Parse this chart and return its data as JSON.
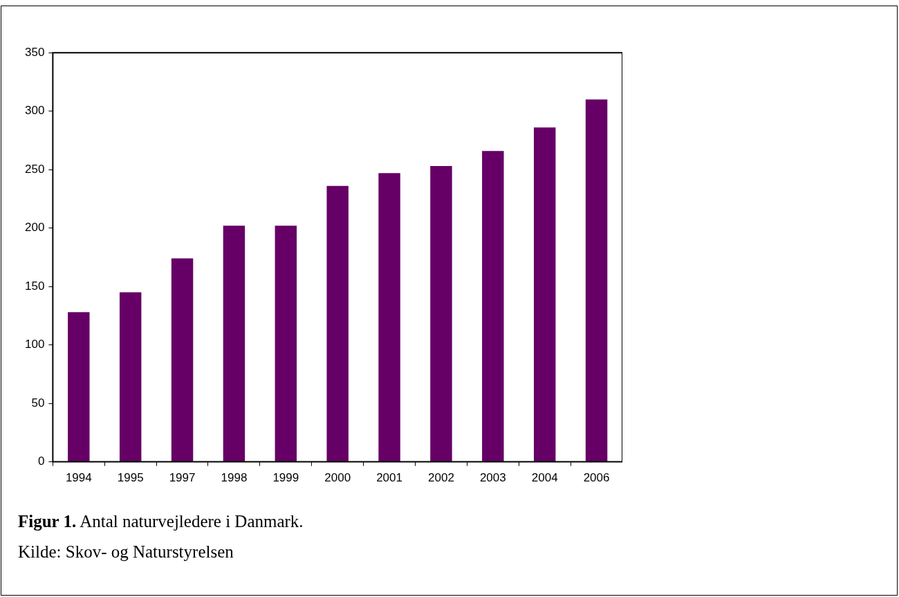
{
  "chart_data": {
    "type": "bar",
    "title": "Figur 1. Antal naturvejledere i Danmark.",
    "categories": [
      "1994",
      "1995",
      "1997",
      "1998",
      "1999",
      "2000",
      "2001",
      "2002",
      "2003",
      "2004",
      "2006"
    ],
    "values": [
      128,
      145,
      174,
      202,
      202,
      236,
      247,
      253,
      266,
      286,
      310
    ],
    "color": "#660066",
    "ylim": [
      0,
      350
    ],
    "yticks": [
      0,
      50,
      100,
      150,
      200,
      250,
      300,
      350
    ],
    "grid": false,
    "legend": false,
    "annotations": [
      "Kilde: Skov- og Naturstyrelsen"
    ]
  }
}
